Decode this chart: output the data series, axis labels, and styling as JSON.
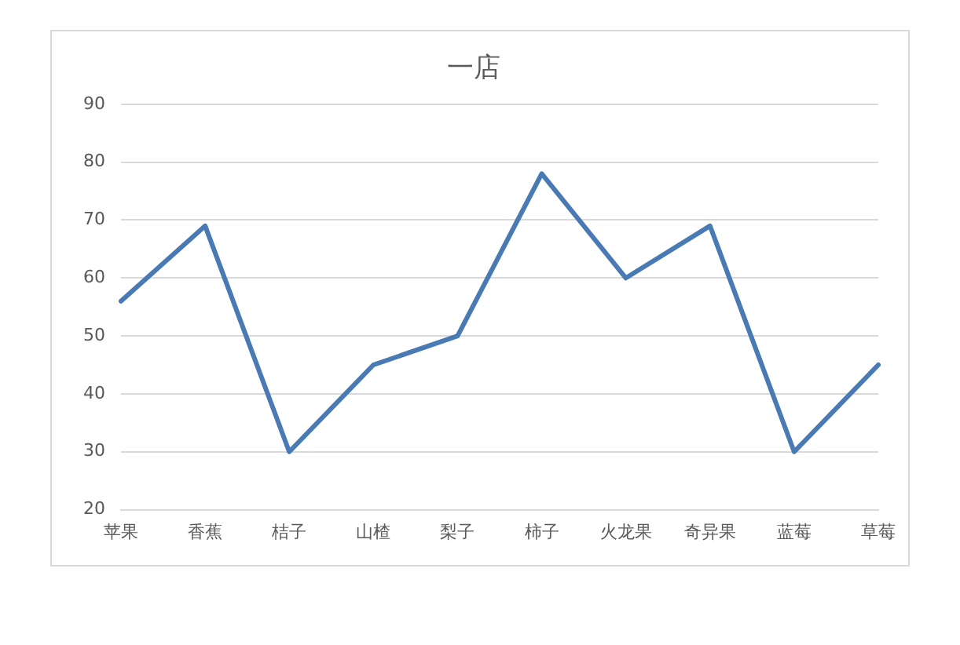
{
  "chart_data": {
    "type": "line",
    "title": "一店",
    "categories": [
      "苹果",
      "香蕉",
      "桔子",
      "山楂",
      "梨子",
      "柿子",
      "火龙果",
      "奇异果",
      "蓝莓",
      "草莓"
    ],
    "series": [
      {
        "color": "#4a7ab4",
        "values": [
          56,
          69,
          30,
          45,
          50,
          78,
          60,
          69,
          30,
          45
        ]
      }
    ],
    "ylim": [
      20,
      90
    ],
    "yticks": [
      20,
      30,
      40,
      50,
      60,
      70,
      80,
      90
    ],
    "grid": "y",
    "legend": false,
    "marker": "none",
    "line_style": "solid"
  }
}
